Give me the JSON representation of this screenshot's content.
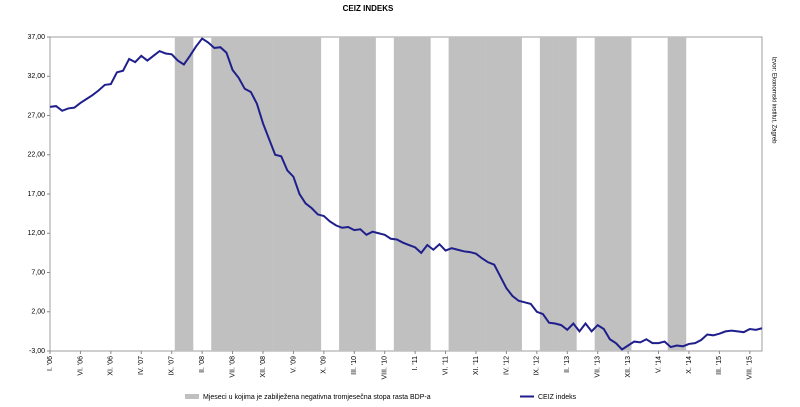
{
  "chart_data": {
    "type": "line",
    "title": "CEIZ INDEKS",
    "source": "Izvor: Ekonomski institut, Zagreb",
    "categories": [
      "I. '06",
      null,
      null,
      null,
      null,
      "VI. '06",
      null,
      null,
      null,
      null,
      "XI. '06",
      null,
      null,
      null,
      null,
      "IV. '07",
      null,
      null,
      null,
      null,
      "IX. '07",
      null,
      null,
      null,
      null,
      "II. '08",
      null,
      null,
      null,
      null,
      "VII. '08",
      null,
      null,
      null,
      null,
      "XII. '08",
      null,
      null,
      null,
      null,
      "V. '09",
      null,
      null,
      null,
      null,
      "X. '09",
      null,
      null,
      null,
      null,
      "III. '10",
      null,
      null,
      null,
      null,
      "VIII. '10",
      null,
      null,
      null,
      null,
      "I. '11",
      null,
      null,
      null,
      null,
      "VI. '11",
      null,
      null,
      null,
      null,
      "XI. '11",
      null,
      null,
      null,
      null,
      "IV. '12",
      null,
      null,
      null,
      null,
      "IX. '12",
      null,
      null,
      null,
      null,
      "II. '13",
      null,
      null,
      null,
      null,
      "VII. '13",
      null,
      null,
      null,
      null,
      "XII. '13",
      null,
      null,
      null,
      null,
      "V. '14",
      null,
      null,
      null,
      null,
      "X. '14",
      null,
      null,
      null,
      null,
      "III. '15",
      null,
      null,
      null,
      null,
      "VIII. '15",
      null,
      null
    ],
    "series": [
      {
        "name": "Mjeseci u kojima je zabilježena negativna tromjesečna stopa rasta BDP-a",
        "type": "bar",
        "color": "#c0c0c0",
        "values": [
          null,
          null,
          null,
          null,
          null,
          null,
          null,
          null,
          null,
          null,
          null,
          null,
          null,
          null,
          null,
          null,
          null,
          null,
          null,
          null,
          null,
          37,
          37,
          37,
          null,
          null,
          null,
          37,
          37,
          37,
          37,
          37,
          37,
          37,
          37,
          37,
          37,
          37,
          37,
          37,
          37,
          37,
          37,
          37,
          37,
          null,
          null,
          null,
          37,
          37,
          37,
          37,
          37,
          37,
          null,
          null,
          null,
          37,
          37,
          37,
          37,
          37,
          37,
          null,
          null,
          null,
          37,
          37,
          37,
          37,
          37,
          37,
          37,
          37,
          37,
          37,
          37,
          37,
          null,
          null,
          null,
          37,
          37,
          37,
          37,
          37,
          37,
          null,
          null,
          null,
          37,
          37,
          37,
          37,
          37,
          37,
          null,
          null,
          null,
          null,
          null,
          null,
          37,
          37,
          37,
          null,
          null,
          null,
          null,
          null,
          null,
          null,
          null,
          null,
          null,
          null,
          null,
          null
        ]
      },
      {
        "name": "CEIZ indeks",
        "type": "line",
        "color": "#1f1f8c",
        "values": [
          28.1,
          28.2,
          27.6,
          27.9,
          28.0,
          28.6,
          29.1,
          29.6,
          30.2,
          30.9,
          31.0,
          32.5,
          32.7,
          34.2,
          33.8,
          34.6,
          34.0,
          34.6,
          35.2,
          34.9,
          34.8,
          34.0,
          33.5,
          34.6,
          35.8,
          36.8,
          36.3,
          35.6,
          35.7,
          35.0,
          32.8,
          31.8,
          30.4,
          30.0,
          28.5,
          26.0,
          24.0,
          22.0,
          21.8,
          20.0,
          19.2,
          17.0,
          15.8,
          15.2,
          14.4,
          14.2,
          13.5,
          13.0,
          12.7,
          12.8,
          12.4,
          12.5,
          11.8,
          12.2,
          12.0,
          11.8,
          11.3,
          11.2,
          10.8,
          10.5,
          10.2,
          9.5,
          10.5,
          9.9,
          10.6,
          9.8,
          10.1,
          9.9,
          9.7,
          9.6,
          9.4,
          8.8,
          8.3,
          8.0,
          6.5,
          5.0,
          4.0,
          3.4,
          3.2,
          3.0,
          2.0,
          1.7,
          0.6,
          0.5,
          0.3,
          -0.3,
          0.5,
          -0.5,
          0.5,
          -0.5,
          0.3,
          -0.2,
          -1.5,
          -2.0,
          -2.8,
          -2.3,
          -1.8,
          -1.9,
          -1.5,
          -2.0,
          -2.0,
          -1.8,
          -2.5,
          -2.3,
          -2.4,
          -2.1,
          -2.0,
          -1.6,
          -0.9,
          -1.0,
          -0.8,
          -0.5,
          -0.4,
          -0.5,
          -0.6,
          -0.2,
          -0.3,
          -0.1
        ]
      }
    ],
    "ylim": [
      -3,
      37
    ],
    "yticks": [
      {
        "value": -3,
        "label": "-3,00"
      },
      {
        "value": 2,
        "label": "2,00"
      },
      {
        "value": 7,
        "label": "7,00"
      },
      {
        "value": 12,
        "label": "12,00"
      },
      {
        "value": 17,
        "label": "17,00"
      },
      {
        "value": 22,
        "label": "22,00"
      },
      {
        "value": 27,
        "label": "27,00"
      },
      {
        "value": 32,
        "label": "32,00"
      },
      {
        "value": 37,
        "label": "37,00"
      }
    ],
    "grid": false
  }
}
